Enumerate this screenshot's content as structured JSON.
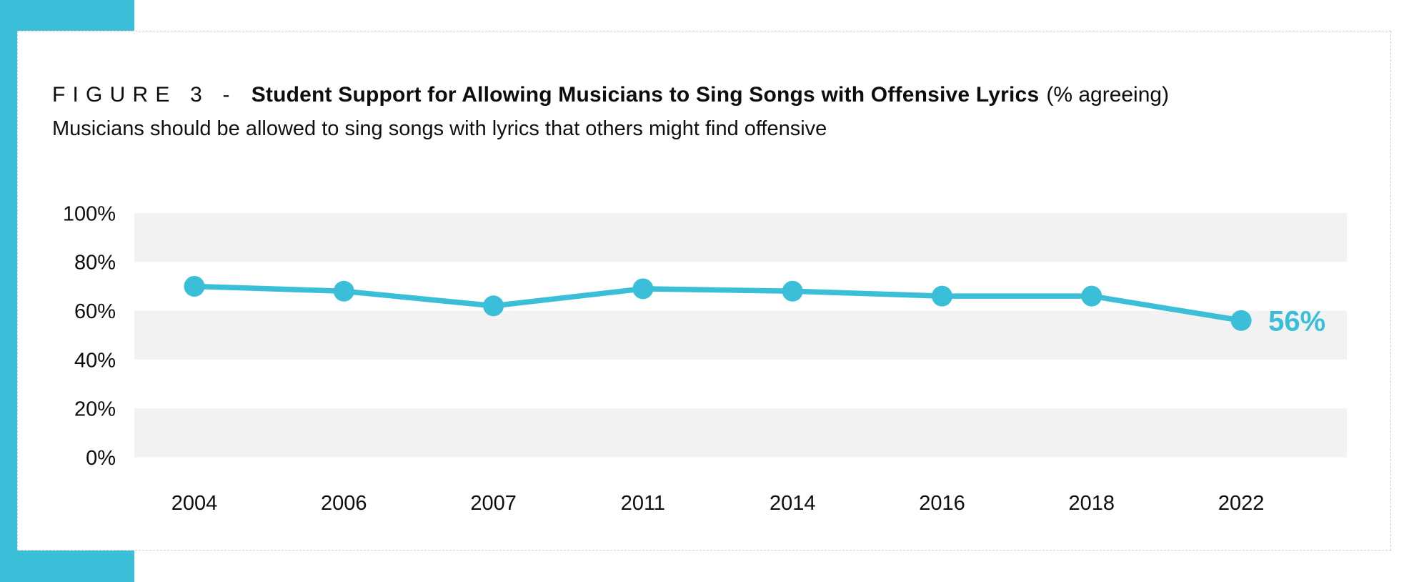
{
  "page": {
    "accent_teal": "#3BBED7",
    "band_gray": "#F2F2F2",
    "text_color": "#0d0d0d",
    "card_border_color": "#cfcfcf"
  },
  "figure": {
    "label_prefix": "FIGURE 3 -",
    "title": "Student Support for Allowing Musicians to Sing Songs with Offensive Lyrics",
    "title_suffix": "(% agreeing)",
    "subtitle": "Musicians should be allowed to sing songs with lyrics that others might find offensive"
  },
  "chart_data": {
    "type": "line",
    "title": "Student Support for Allowing Musicians to Sing Songs with Offensive Lyrics (% agreeing)",
    "subtitle": "Musicians should be allowed to sing songs with lyrics that others might find offensive",
    "categories": [
      "2004",
      "2006",
      "2007",
      "2011",
      "2014",
      "2016",
      "2018",
      "2022"
    ],
    "series": [
      {
        "name": "% agreeing",
        "values": [
          70,
          68,
          62,
          69,
          68,
          66,
          66,
          56
        ]
      }
    ],
    "last_point_label": "56%",
    "y_ticks": [
      "100%",
      "80%",
      "60%",
      "40%",
      "20%",
      "0%"
    ],
    "y_tick_values": [
      100,
      80,
      60,
      40,
      20,
      0
    ],
    "xlabel": "",
    "ylabel": "",
    "ylim": [
      0,
      100
    ],
    "grid": "alternating horizontal gray bands (80-100, 40-60, 0-20)",
    "legend": "none",
    "line_color": "#3BBED7",
    "point_color": "#3BBED7",
    "band_color": "#F2F2F2",
    "last_label_color": "#3BBED7"
  }
}
